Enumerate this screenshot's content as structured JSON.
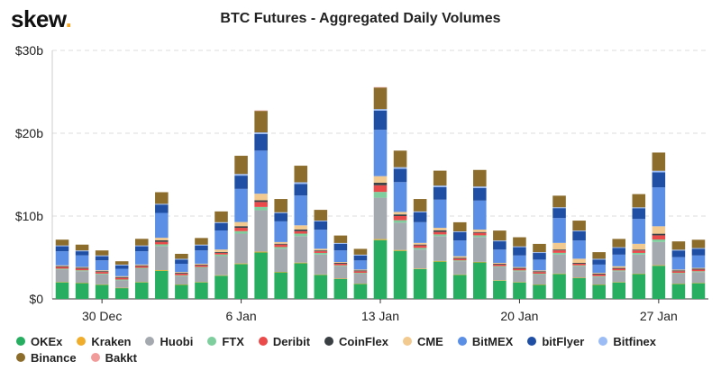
{
  "logo": {
    "text": "skew",
    "dot": "."
  },
  "chart_data": {
    "type": "bar",
    "stacked": true,
    "title": "BTC Futures - Aggregated Daily Volumes",
    "xlabel": "",
    "ylabel": "",
    "ylim": [
      0,
      30
    ],
    "y_ticks": [
      0,
      10,
      20,
      30
    ],
    "y_tick_labels": [
      "$0",
      "$10b",
      "$20b",
      "$30b"
    ],
    "x_tick_labels": [
      {
        "index": 2,
        "label": "30 Dec"
      },
      {
        "index": 9,
        "label": "6 Jan"
      },
      {
        "index": 16,
        "label": "13 Jan"
      },
      {
        "index": 23,
        "label": "20 Jan"
      },
      {
        "index": 30,
        "label": "27 Jan"
      }
    ],
    "grid": true,
    "legend_position": "bottom",
    "categories": [
      "28 Dec",
      "29 Dec",
      "30 Dec",
      "31 Dec",
      "1 Jan",
      "2 Jan",
      "3 Jan",
      "4 Jan",
      "5 Jan",
      "6 Jan",
      "7 Jan",
      "8 Jan",
      "9 Jan",
      "10 Jan",
      "11 Jan",
      "12 Jan",
      "13 Jan",
      "14 Jan",
      "15 Jan",
      "16 Jan",
      "17 Jan",
      "18 Jan",
      "19 Jan",
      "20 Jan",
      "21 Jan",
      "22 Jan",
      "23 Jan",
      "24 Jan",
      "25 Jan",
      "26 Jan",
      "27 Jan",
      "28 Jan",
      "29 Jan"
    ],
    "series": [
      {
        "name": "OKEx",
        "color": "#27ae60",
        "values": [
          2.0,
          1.9,
          1.7,
          1.3,
          2.0,
          3.4,
          1.7,
          2.0,
          2.8,
          4.2,
          5.6,
          3.2,
          4.3,
          2.9,
          2.4,
          1.8,
          7.1,
          5.8,
          3.6,
          4.5,
          2.9,
          4.4,
          2.2,
          2.0,
          1.7,
          3.0,
          2.5,
          1.7,
          2.0,
          3.0,
          4.0,
          1.8,
          1.9
        ]
      },
      {
        "name": "Kraken",
        "color": "#f0ad2c",
        "values": [
          0.05,
          0.05,
          0.05,
          0.04,
          0.05,
          0.08,
          0.04,
          0.05,
          0.06,
          0.08,
          0.1,
          0.06,
          0.08,
          0.05,
          0.05,
          0.04,
          0.12,
          0.1,
          0.06,
          0.08,
          0.05,
          0.07,
          0.05,
          0.04,
          0.04,
          0.06,
          0.05,
          0.04,
          0.04,
          0.05,
          0.07,
          0.04,
          0.04
        ]
      },
      {
        "name": "Huobi",
        "color": "#a3a9ae",
        "values": [
          1.5,
          1.4,
          1.2,
          0.9,
          1.6,
          2.9,
          1.0,
          1.7,
          2.3,
          3.6,
          5.0,
          2.8,
          3.2,
          2.4,
          1.5,
          1.2,
          5.0,
          3.3,
          2.3,
          3.0,
          1.6,
          3.0,
          1.6,
          1.3,
          1.2,
          2.3,
          1.4,
          0.9,
          1.3,
          2.3,
          2.8,
          1.2,
          1.3
        ]
      },
      {
        "name": "FTX",
        "color": "#7fcf9e",
        "values": [
          0.1,
          0.1,
          0.1,
          0.1,
          0.1,
          0.2,
          0.1,
          0.1,
          0.2,
          0.3,
          0.4,
          0.2,
          0.3,
          0.2,
          0.1,
          0.1,
          0.7,
          0.3,
          0.2,
          0.2,
          0.1,
          0.2,
          0.1,
          0.1,
          0.1,
          0.2,
          0.1,
          0.1,
          0.1,
          0.2,
          0.3,
          0.1,
          0.1
        ]
      },
      {
        "name": "Deribit",
        "color": "#ea4a4a",
        "values": [
          0.2,
          0.2,
          0.2,
          0.2,
          0.2,
          0.3,
          0.2,
          0.2,
          0.2,
          0.4,
          0.6,
          0.3,
          0.3,
          0.2,
          0.2,
          0.2,
          0.8,
          0.5,
          0.3,
          0.3,
          0.2,
          0.3,
          0.2,
          0.2,
          0.2,
          0.3,
          0.2,
          0.2,
          0.2,
          0.3,
          0.5,
          0.2,
          0.2
        ]
      },
      {
        "name": "CoinFlex",
        "color": "#3a3f44",
        "values": [
          0.1,
          0.1,
          0.1,
          0.1,
          0.1,
          0.2,
          0.1,
          0.1,
          0.1,
          0.2,
          0.2,
          0.1,
          0.2,
          0.1,
          0.1,
          0.1,
          0.3,
          0.2,
          0.1,
          0.2,
          0.1,
          0.1,
          0.1,
          0.1,
          0.1,
          0.1,
          0.1,
          0.1,
          0.1,
          0.1,
          0.2,
          0.1,
          0.1
        ]
      },
      {
        "name": "CME",
        "color": "#f2c98e",
        "values": [
          0.1,
          0.1,
          0.1,
          0.1,
          0.1,
          0.3,
          0.1,
          0.1,
          0.3,
          0.5,
          0.8,
          0.2,
          0.5,
          0.2,
          0.1,
          0.1,
          0.8,
          0.3,
          0.2,
          0.3,
          0.2,
          0.3,
          0.1,
          0.1,
          0.1,
          0.8,
          0.5,
          0.1,
          0.2,
          0.7,
          0.9,
          0.1,
          0.1
        ]
      },
      {
        "name": "BitMEX",
        "color": "#5b8fe6",
        "values": [
          1.7,
          1.4,
          1.2,
          0.9,
          1.6,
          3.0,
          1.0,
          1.6,
          2.3,
          4.0,
          5.2,
          2.5,
          3.6,
          2.3,
          1.4,
          1.1,
          5.6,
          3.6,
          2.5,
          3.4,
          1.9,
          3.5,
          1.6,
          1.4,
          1.3,
          3.0,
          2.2,
          1.0,
          1.4,
          3.0,
          4.7,
          1.5,
          1.5
        ]
      },
      {
        "name": "bitFlyer",
        "color": "#1f4fa5",
        "values": [
          0.6,
          0.5,
          0.5,
          0.4,
          0.6,
          1.0,
          0.5,
          0.6,
          0.9,
          1.6,
          2.0,
          1.0,
          1.4,
          1.0,
          0.8,
          0.6,
          2.3,
          1.6,
          1.2,
          1.5,
          1.0,
          1.5,
          1.0,
          1.0,
          0.8,
          1.2,
          1.1,
          0.6,
          0.8,
          1.3,
          1.8,
          0.8,
          0.8
        ]
      },
      {
        "name": "Bitfinex",
        "color": "#9bbcf5",
        "values": [
          0.1,
          0.1,
          0.1,
          0.1,
          0.1,
          0.1,
          0.1,
          0.1,
          0.1,
          0.2,
          0.2,
          0.1,
          0.2,
          0.1,
          0.1,
          0.1,
          0.2,
          0.2,
          0.1,
          0.2,
          0.1,
          0.2,
          0.1,
          0.1,
          0.1,
          0.1,
          0.1,
          0.1,
          0.1,
          0.1,
          0.2,
          0.1,
          0.1
        ]
      },
      {
        "name": "Binance",
        "color": "#8c6d2c",
        "values": [
          0.7,
          0.7,
          0.6,
          0.4,
          0.8,
          1.4,
          0.6,
          0.8,
          1.3,
          2.2,
          2.6,
          1.6,
          2.0,
          1.3,
          0.9,
          0.7,
          2.6,
          2.0,
          1.5,
          1.8,
          1.1,
          2.0,
          1.2,
          1.1,
          1.0,
          1.4,
          1.2,
          0.8,
          1.0,
          1.6,
          2.2,
          1.0,
          1.0
        ]
      },
      {
        "name": "Bakkt",
        "color": "#f29b9b",
        "values": [
          0,
          0,
          0,
          0,
          0,
          0,
          0,
          0,
          0,
          0,
          0.05,
          0,
          0,
          0,
          0,
          0,
          0.05,
          0,
          0,
          0,
          0,
          0,
          0,
          0,
          0,
          0,
          0,
          0,
          0,
          0,
          0,
          0,
          0
        ]
      }
    ]
  }
}
